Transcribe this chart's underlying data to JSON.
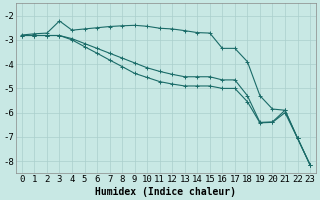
{
  "xlabel": "Humidex (Indice chaleur)",
  "xlim_min": -0.5,
  "xlim_max": 23.5,
  "ylim_min": -8.5,
  "ylim_max": -1.5,
  "yticks": [
    -2,
    -3,
    -4,
    -5,
    -6,
    -7,
    -8
  ],
  "xticks": [
    0,
    1,
    2,
    3,
    4,
    5,
    6,
    7,
    8,
    9,
    10,
    11,
    12,
    13,
    14,
    15,
    16,
    17,
    18,
    19,
    20,
    21,
    22,
    23
  ],
  "background_color": "#c8e8e4",
  "grid_color": "#aacfcc",
  "line_color": "#1a6b68",
  "line1_y": [
    -2.8,
    -2.75,
    -2.72,
    -2.22,
    -2.6,
    -2.55,
    -2.5,
    -2.45,
    -2.42,
    -2.4,
    -2.44,
    -2.52,
    -2.55,
    -2.62,
    -2.7,
    -2.72,
    -3.35,
    -3.35,
    -3.9,
    -5.3,
    -5.85,
    -5.9,
    -7.05,
    -8.15
  ],
  "line2_y": [
    -2.82,
    -2.82,
    -2.82,
    -2.82,
    -2.95,
    -3.15,
    -3.35,
    -3.55,
    -3.75,
    -3.95,
    -4.15,
    -4.3,
    -4.42,
    -4.52,
    -4.52,
    -4.52,
    -4.65,
    -4.65,
    -5.3,
    -6.4,
    -6.38,
    -5.9,
    -7.05,
    -8.15
  ],
  "line3_y": [
    -2.82,
    -2.82,
    -2.82,
    -2.82,
    -3.0,
    -3.28,
    -3.55,
    -3.83,
    -4.1,
    -4.38,
    -4.55,
    -4.72,
    -4.82,
    -4.9,
    -4.9,
    -4.9,
    -5.0,
    -5.0,
    -5.55,
    -6.42,
    -6.4,
    -6.0,
    -7.05,
    -8.15
  ],
  "xlabel_fontsize": 7,
  "tick_fontsize": 6.5
}
